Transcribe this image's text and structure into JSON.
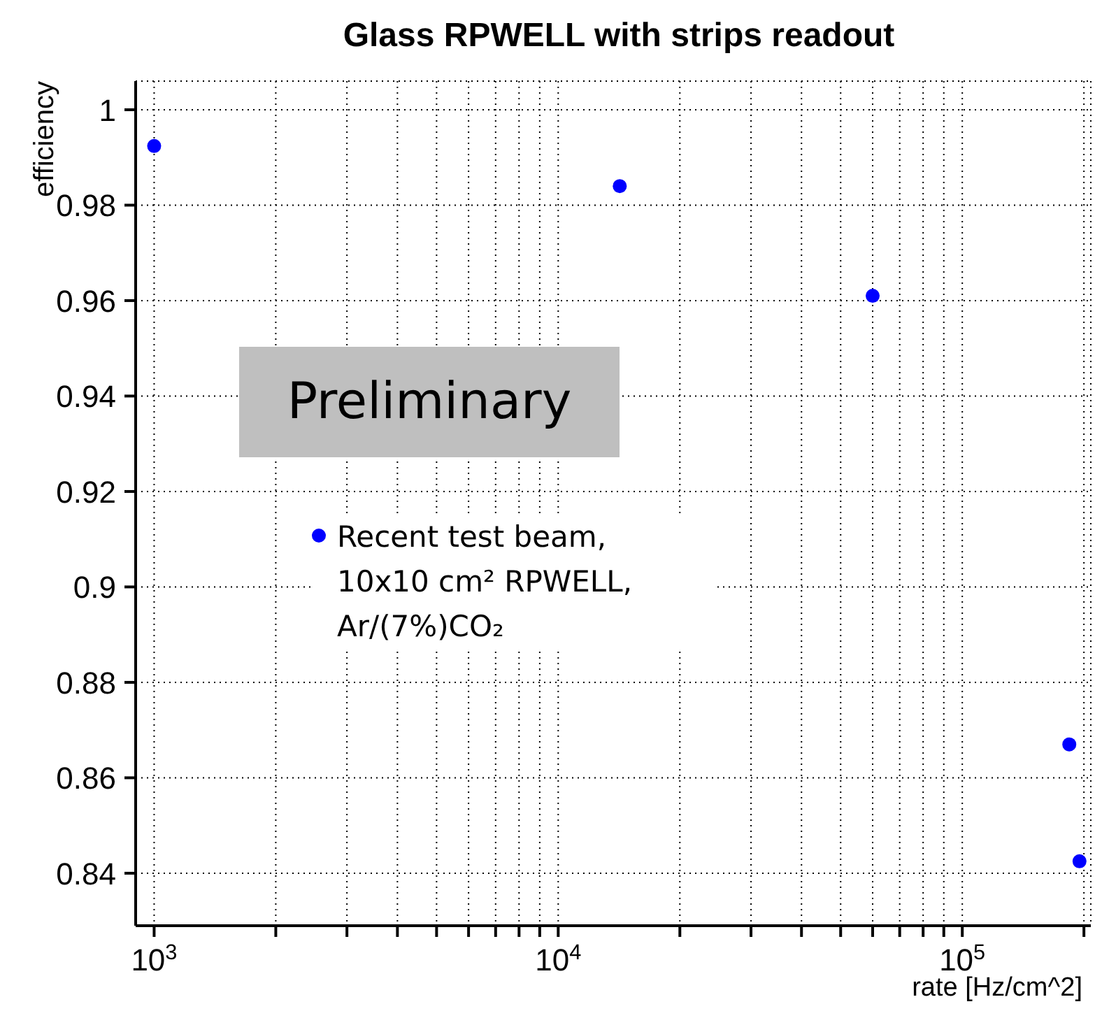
{
  "chart_data": {
    "type": "scatter",
    "title": "Glass RPWELL with strips readout",
    "xlabel": "rate [Hz/cm^2]",
    "ylabel": "efficiency",
    "log": "x",
    "xlim": [
      900,
      208000
    ],
    "xticks": [
      {
        "value": 1000,
        "label": "10$^{3}$"
      },
      {
        "value": 2000,
        "label": null
      },
      {
        "value": 3000,
        "label": null
      },
      {
        "value": 4000,
        "label": null
      },
      {
        "value": 5000,
        "label": null
      },
      {
        "value": 6000,
        "label": null
      },
      {
        "value": 7000,
        "label": null
      },
      {
        "value": 8000,
        "label": null
      },
      {
        "value": 9000,
        "label": null
      },
      {
        "value": 10000,
        "label": "10$^{4}$"
      },
      {
        "value": 20000,
        "label": null
      },
      {
        "value": 30000,
        "label": null
      },
      {
        "value": 40000,
        "label": null
      },
      {
        "value": 50000,
        "label": null
      },
      {
        "value": 60000,
        "label": null
      },
      {
        "value": 70000,
        "label": null
      },
      {
        "value": 80000,
        "label": null
      },
      {
        "value": 90000,
        "label": null
      },
      {
        "value": 100000,
        "label": "10$^{5}$"
      },
      {
        "value": 200000,
        "label": null
      }
    ],
    "ylim": [
      0.829,
      1.006
    ],
    "yticks": [
      0.84,
      0.86,
      0.88,
      0.9,
      0.92,
      0.94,
      0.96,
      0.98,
      1
    ],
    "grid": true,
    "legend": "left",
    "marker": "circle",
    "annotations": [
      "Preliminary"
    ],
    "series": [
      {
        "name": "Recent test beam, 10x10 cm² RPWELL, Ar/(7%)CO₂",
        "color": "#0000ff",
        "x": [
          1000,
          14200,
          60000,
          184000,
          195000
        ],
        "values": [
          0.9924,
          0.984,
          0.961,
          0.867,
          0.8425
        ]
      }
    ]
  }
}
